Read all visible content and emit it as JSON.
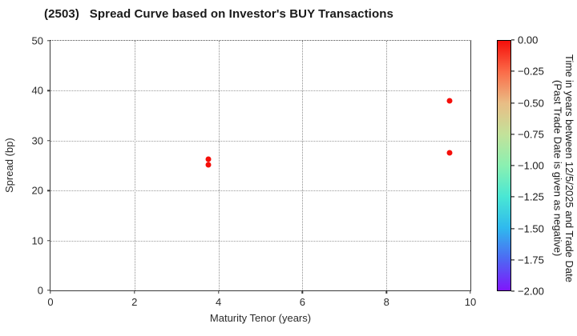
{
  "chart_data": {
    "type": "scatter",
    "title": "(2503)   Spread Curve based on Investor's BUY Transactions",
    "xlabel": "Maturity Tenor (years)",
    "ylabel": "Spread (bp)",
    "xlim": [
      0,
      10
    ],
    "ylim": [
      0,
      50
    ],
    "xticks": [
      0,
      2,
      4,
      6,
      8,
      10
    ],
    "yticks": [
      0,
      10,
      20,
      30,
      40,
      50
    ],
    "grid": true,
    "legend_position": "none",
    "points": [
      {
        "x": 3.75,
        "y": 26.3,
        "time": 0.0
      },
      {
        "x": 3.75,
        "y": 25.2,
        "time": 0.0
      },
      {
        "x": 9.5,
        "y": 38.0,
        "time": 0.0
      },
      {
        "x": 9.5,
        "y": 27.6,
        "time": 0.0
      }
    ],
    "marker_color": "#f50f0a",
    "colorbar": {
      "label_line1": "Time in years between 12/5/2025 and Trade Date",
      "label_line2": "(Past Trade Date is given as negative)",
      "ticks": [
        "0.00",
        "−0.25",
        "−0.50",
        "−0.75",
        "−1.00",
        "−1.25",
        "−1.50",
        "−1.75",
        "−2.00"
      ],
      "range": [
        0.0,
        -2.0
      ],
      "gradient": [
        "#f50f0a",
        "#fb6c49",
        "#e9bd85",
        "#c3e29a",
        "#8af0b1",
        "#49e7d4",
        "#2fb9ee",
        "#4e68f3",
        "#7f16fb"
      ]
    }
  }
}
